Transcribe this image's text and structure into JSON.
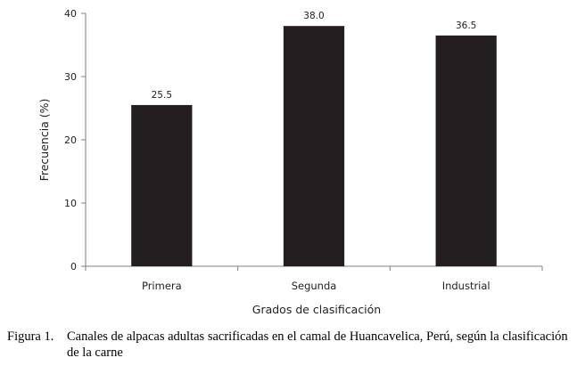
{
  "chart_data": {
    "type": "bar",
    "categories": [
      "Primera",
      "Segunda",
      "Industrial"
    ],
    "values": [
      25.5,
      38.0,
      36.5
    ],
    "data_labels": [
      "25.5",
      "38.0",
      "36.5"
    ],
    "xlabel": "Grados de clasificación",
    "ylabel": "Frecuencia (%)",
    "ylim": [
      0,
      40
    ],
    "yticks": [
      0,
      10,
      20,
      30,
      40
    ],
    "grid": false,
    "bar_color": "#231f20"
  },
  "caption": {
    "label": "Figura 1.",
    "text": "Canales de alpacas adultas sacrificadas en el camal de Huancavelica, Perú, según la clasificación de la carne"
  }
}
